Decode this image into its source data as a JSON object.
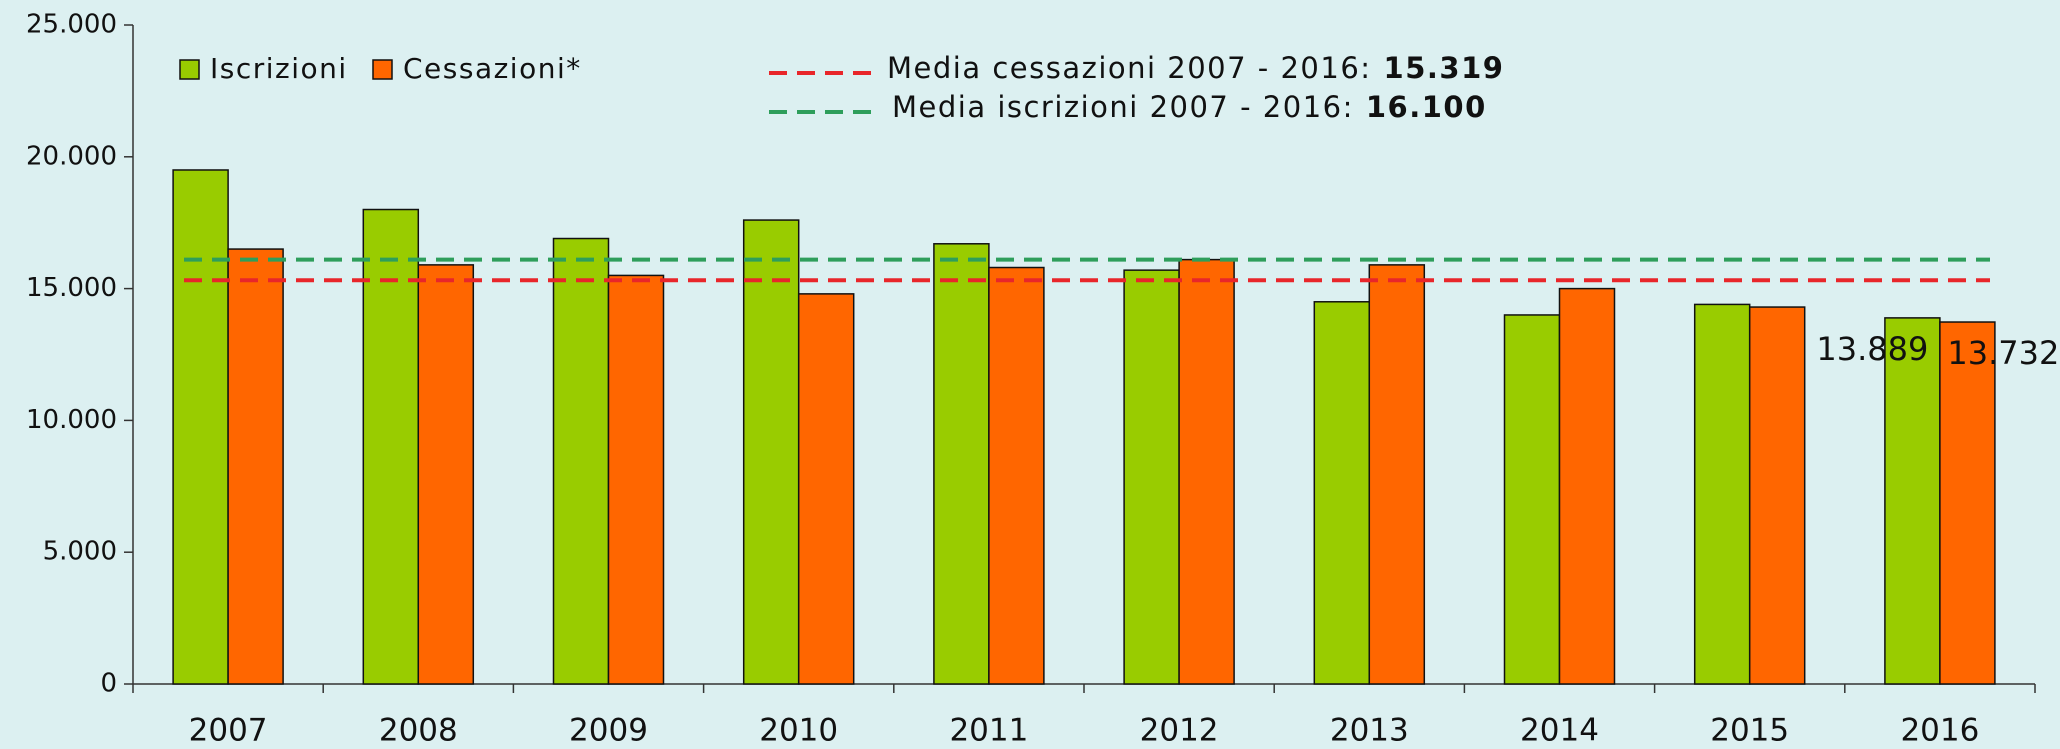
{
  "chart_data": {
    "type": "bar",
    "categories": [
      "2007",
      "2008",
      "2009",
      "2010",
      "2011",
      "2012",
      "2013",
      "2014",
      "2015",
      "2016"
    ],
    "series": [
      {
        "name": "Iscrizioni",
        "color": "#99cc00",
        "values": [
          19500,
          18000,
          16900,
          17600,
          16700,
          15700,
          14500,
          14000,
          14400,
          13889
        ],
        "value_labels": [
          null,
          null,
          null,
          null,
          null,
          null,
          null,
          null,
          null,
          "13.889"
        ]
      },
      {
        "name": "Cessazioni*",
        "color": "#ff6600",
        "values": [
          16500,
          15900,
          15500,
          14800,
          15800,
          16100,
          15900,
          15000,
          14300,
          13732
        ],
        "value_labels": [
          null,
          null,
          null,
          null,
          null,
          null,
          null,
          null,
          null,
          "13.732"
        ]
      }
    ],
    "mean_lines": [
      {
        "name": "Media cessazioni 2007 - 2016:",
        "value": 15319,
        "label": "15.319",
        "color": "#e8262a"
      },
      {
        "name": "Media iscrizioni 2007 - 2016:",
        "value": 16100,
        "label": "16.100",
        "color": "#2e9e5b"
      }
    ],
    "ylim": [
      0,
      25000
    ],
    "yticks": [
      0,
      {
        "value": 5000,
        "label": "5.000"
      },
      {
        "value": 10000,
        "label": "10.000"
      },
      {
        "value": 15000,
        "label": "15.000"
      },
      {
        "value": 20000,
        "label": "20.000"
      },
      {
        "value": 25000,
        "label": "25.000"
      }
    ],
    "grid": false
  }
}
